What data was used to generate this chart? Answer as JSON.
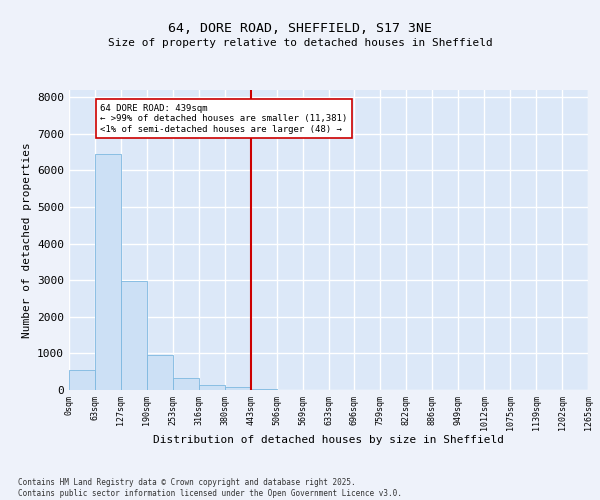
{
  "title1": "64, DORE ROAD, SHEFFIELD, S17 3NE",
  "title2": "Size of property relative to detached houses in Sheffield",
  "xlabel": "Distribution of detached houses by size in Sheffield",
  "ylabel": "Number of detached properties",
  "bar_color": "#cce0f5",
  "bar_edge_color": "#7db8e0",
  "background_color": "#dce8f8",
  "fig_background_color": "#eef2fa",
  "grid_color": "#ffffff",
  "vline_color": "#cc0000",
  "annotation_text": "64 DORE ROAD: 439sqm\n← >99% of detached houses are smaller (11,381)\n<1% of semi-detached houses are larger (48) →",
  "annotation_box_color": "#ffffff",
  "annotation_box_edge": "#cc0000",
  "footer_text": "Contains HM Land Registry data © Crown copyright and database right 2025.\nContains public sector information licensed under the Open Government Licence v3.0.",
  "bin_labels": [
    "0sqm",
    "63sqm",
    "127sqm",
    "190sqm",
    "253sqm",
    "316sqm",
    "380sqm",
    "443sqm",
    "506sqm",
    "569sqm",
    "633sqm",
    "696sqm",
    "759sqm",
    "822sqm",
    "886sqm",
    "949sqm",
    "1012sqm",
    "1075sqm",
    "1139sqm",
    "1202sqm",
    "1265sqm"
  ],
  "bar_heights": [
    550,
    6450,
    2980,
    960,
    340,
    150,
    80,
    30,
    5,
    2,
    1,
    0,
    0,
    0,
    0,
    0,
    0,
    0,
    0,
    0
  ],
  "vline_bin_index": 7,
  "ylim": [
    0,
    8200
  ],
  "yticks": [
    0,
    1000,
    2000,
    3000,
    4000,
    5000,
    6000,
    7000,
    8000
  ]
}
